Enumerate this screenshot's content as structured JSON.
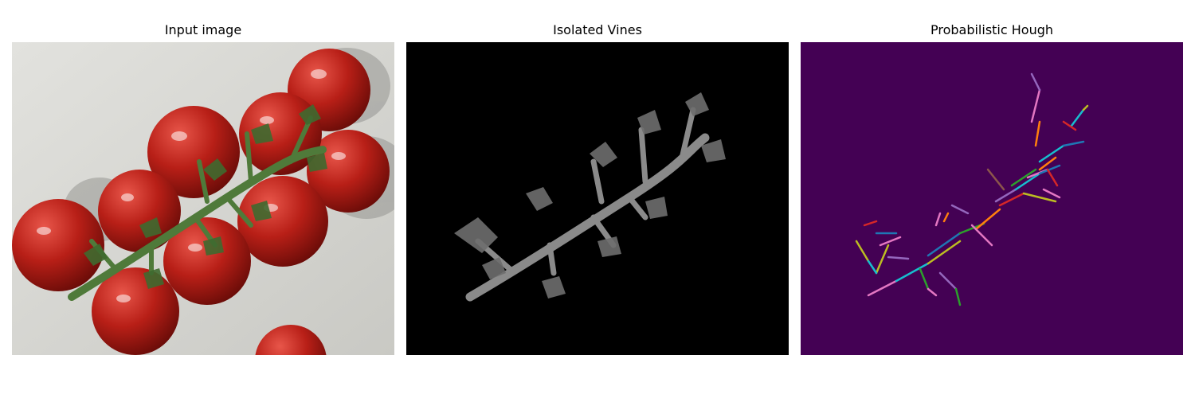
{
  "panels": [
    {
      "title": "Input image",
      "icon": "tomato-vine-photo"
    },
    {
      "title": "Isolated Vines",
      "icon": "vine-mask-image"
    },
    {
      "title": "Probabilistic Hough",
      "icon": "hough-lines-image"
    }
  ],
  "colors": {
    "tomato": "#c1241c",
    "vine": "#4f7a3a",
    "background_photo": "#dcdcd8",
    "mask_background": "#000000",
    "hough_background": "#440154"
  }
}
